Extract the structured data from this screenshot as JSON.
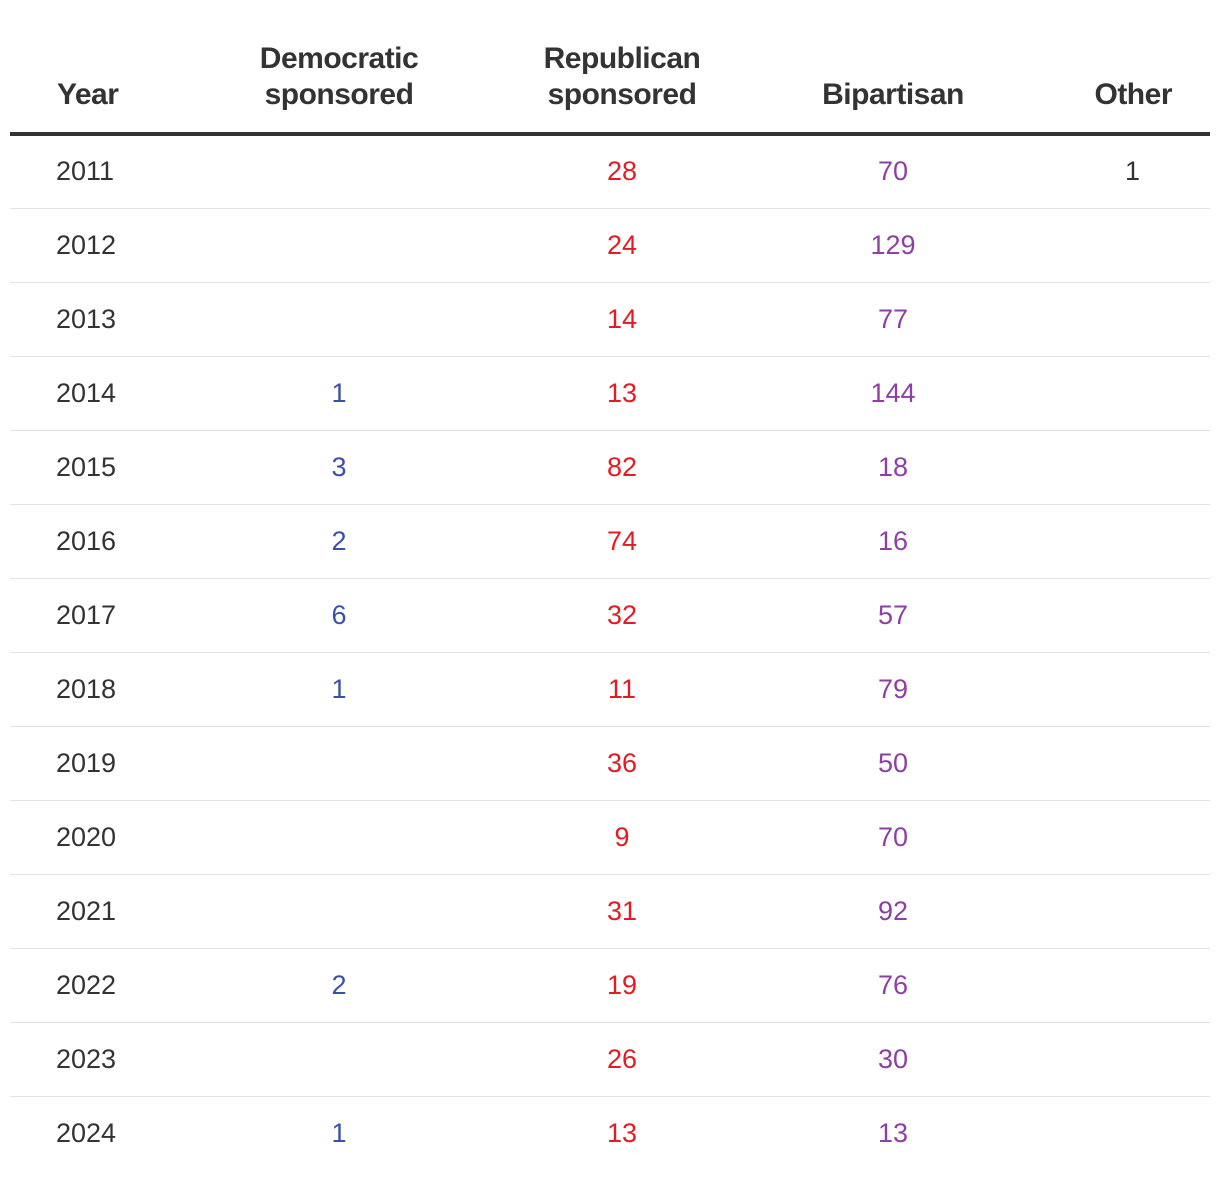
{
  "colors": {
    "democratic": "#3a4fa8",
    "republican": "#e31b23",
    "bipartisan": "#8e3fa3",
    "other": "#333333",
    "year": "#333333"
  },
  "table": {
    "headers": {
      "year": "Year",
      "democratic_line1": "Democratic",
      "democratic_line2": "sponsored",
      "republican_line1": "Republican",
      "republican_line2": "sponsored",
      "bipartisan": "Bipartisan",
      "other": "Other"
    },
    "rows": [
      {
        "year": "2011",
        "democratic": "",
        "republican": "28",
        "bipartisan": "70",
        "other": "1"
      },
      {
        "year": "2012",
        "democratic": "",
        "republican": "24",
        "bipartisan": "129",
        "other": ""
      },
      {
        "year": "2013",
        "democratic": "",
        "republican": "14",
        "bipartisan": "77",
        "other": ""
      },
      {
        "year": "2014",
        "democratic": "1",
        "republican": "13",
        "bipartisan": "144",
        "other": ""
      },
      {
        "year": "2015",
        "democratic": "3",
        "republican": "82",
        "bipartisan": "18",
        "other": ""
      },
      {
        "year": "2016",
        "democratic": "2",
        "republican": "74",
        "bipartisan": "16",
        "other": ""
      },
      {
        "year": "2017",
        "democratic": "6",
        "republican": "32",
        "bipartisan": "57",
        "other": ""
      },
      {
        "year": "2018",
        "democratic": "1",
        "republican": "11",
        "bipartisan": "79",
        "other": ""
      },
      {
        "year": "2019",
        "democratic": "",
        "republican": "36",
        "bipartisan": "50",
        "other": ""
      },
      {
        "year": "2020",
        "democratic": "",
        "republican": "9",
        "bipartisan": "70",
        "other": ""
      },
      {
        "year": "2021",
        "democratic": "",
        "republican": "31",
        "bipartisan": "92",
        "other": ""
      },
      {
        "year": "2022",
        "democratic": "2",
        "republican": "19",
        "bipartisan": "76",
        "other": ""
      },
      {
        "year": "2023",
        "democratic": "",
        "republican": "26",
        "bipartisan": "30",
        "other": ""
      },
      {
        "year": "2024",
        "democratic": "1",
        "republican": "13",
        "bipartisan": "13",
        "other": ""
      }
    ]
  }
}
